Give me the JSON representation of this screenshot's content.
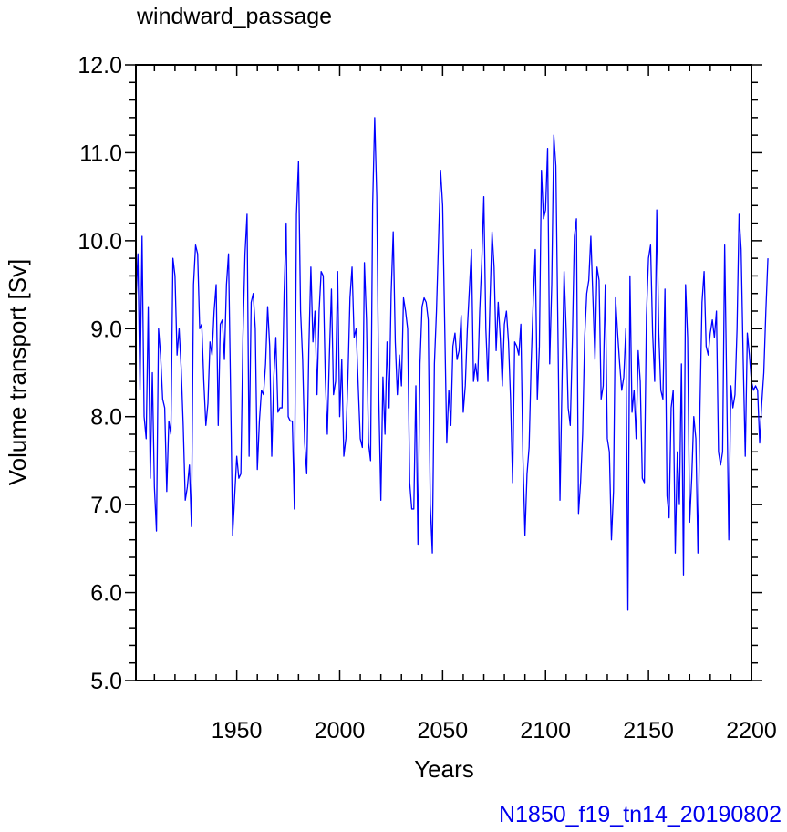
{
  "chart_data": {
    "type": "line",
    "title": "windward_passage",
    "xlabel": "Years",
    "ylabel": "Volume transport [Sv]",
    "footer": "N1850_f19_tn14_20190802",
    "xlim": [
      1901,
      2200
    ],
    "ylim": [
      5.0,
      12.0
    ],
    "x_ticks": [
      1950,
      2000,
      2050,
      2100,
      2150,
      2200
    ],
    "y_ticks": [
      "5.0",
      "6.0",
      "7.0",
      "8.0",
      "9.0",
      "10.0",
      "11.0",
      "12.0"
    ],
    "grid": false,
    "line_color": "#0000ff",
    "series": [
      {
        "x_start": 1901,
        "x_step": 1,
        "values": [
          9.3,
          9.85,
          8.3,
          10.05,
          8.0,
          7.75,
          9.25,
          7.3,
          8.5,
          7.2,
          6.7,
          9.0,
          8.7,
          8.2,
          8.1,
          7.15,
          7.95,
          7.8,
          9.8,
          9.6,
          8.7,
          9.0,
          8.55,
          7.9,
          7.05,
          7.2,
          7.45,
          6.75,
          9.5,
          9.95,
          9.85,
          9.0,
          9.05,
          8.4,
          7.9,
          8.15,
          8.85,
          8.7,
          9.2,
          9.5,
          7.9,
          9.05,
          9.1,
          8.65,
          9.5,
          9.85,
          8.3,
          6.65,
          7.1,
          7.55,
          7.3,
          7.35,
          8.9,
          9.85,
          10.3,
          7.55,
          9.3,
          9.4,
          9.0,
          7.4,
          7.95,
          8.3,
          8.25,
          8.6,
          9.25,
          8.8,
          7.55,
          8.45,
          8.9,
          8.05,
          8.1,
          8.1,
          9.4,
          10.2,
          8.0,
          7.95,
          7.95,
          6.95,
          10.3,
          10.9,
          9.2,
          8.65,
          7.7,
          7.35,
          8.75,
          9.7,
          8.85,
          9.2,
          8.25,
          9.2,
          9.65,
          9.6,
          8.45,
          7.8,
          8.7,
          9.45,
          8.25,
          8.4,
          9.65,
          8.0,
          8.65,
          7.55,
          7.75,
          8.45,
          9.35,
          9.7,
          8.9,
          9.0,
          8.35,
          7.75,
          7.65,
          9.75,
          9.1,
          7.7,
          7.5,
          10.4,
          11.4,
          10.5,
          8.2,
          7.05,
          8.45,
          7.8,
          8.85,
          8.1,
          9.4,
          10.1,
          8.85,
          8.25,
          8.7,
          8.35,
          9.35,
          9.2,
          9.0,
          7.25,
          6.95,
          6.95,
          8.35,
          6.55,
          8.6,
          9.25,
          9.35,
          9.3,
          9.1,
          7.0,
          6.45,
          8.6,
          9.2,
          10.0,
          10.8,
          10.4,
          9.05,
          7.7,
          8.3,
          7.9,
          8.8,
          8.95,
          8.65,
          8.75,
          9.15,
          8.05,
          8.35,
          9.0,
          9.45,
          9.9,
          8.4,
          8.6,
          8.4,
          9.2,
          9.75,
          10.5,
          9.0,
          8.4,
          9.3,
          10.1,
          9.7,
          8.75,
          9.3,
          8.9,
          8.35,
          9.05,
          9.2,
          8.85,
          8.2,
          7.25,
          8.85,
          8.8,
          8.7,
          9.05,
          7.55,
          6.65,
          7.35,
          7.65,
          8.6,
          9.3,
          9.9,
          8.2,
          8.8,
          10.8,
          10.25,
          10.35,
          11.05,
          8.6,
          9.5,
          11.2,
          10.85,
          9.0,
          7.05,
          8.4,
          9.65,
          9.0,
          8.1,
          7.9,
          8.85,
          10.05,
          10.25,
          6.9,
          7.25,
          7.8,
          8.9,
          9.4,
          9.55,
          10.05,
          9.35,
          8.65,
          9.7,
          9.55,
          8.2,
          8.35,
          9.5,
          7.75,
          7.6,
          6.6,
          7.15,
          9.35,
          8.95,
          8.6,
          8.3,
          8.45,
          9.0,
          5.8,
          9.6,
          8.05,
          8.3,
          7.75,
          8.75,
          8.4,
          7.3,
          7.25,
          9.15,
          9.8,
          9.95,
          8.95,
          8.4,
          10.35,
          8.95,
          8.3,
          8.2,
          9.45,
          7.1,
          6.85,
          8.1,
          8.3,
          6.45,
          7.6,
          7.0,
          8.6,
          6.2,
          9.5,
          8.9,
          6.8,
          7.3,
          8.0,
          7.75,
          6.45,
          8.1,
          9.3,
          9.65,
          8.8,
          8.7,
          8.95,
          9.1,
          8.9,
          9.2,
          7.6,
          7.45,
          7.6,
          9.95,
          8.3,
          6.6,
          8.35,
          8.1,
          8.25,
          9.0,
          10.3,
          9.9,
          8.65,
          7.55,
          8.95,
          8.7,
          8.4,
          8.3,
          8.35,
          8.3,
          7.7,
          8.15,
          8.5,
          9.2,
          9.8
        ]
      }
    ]
  }
}
